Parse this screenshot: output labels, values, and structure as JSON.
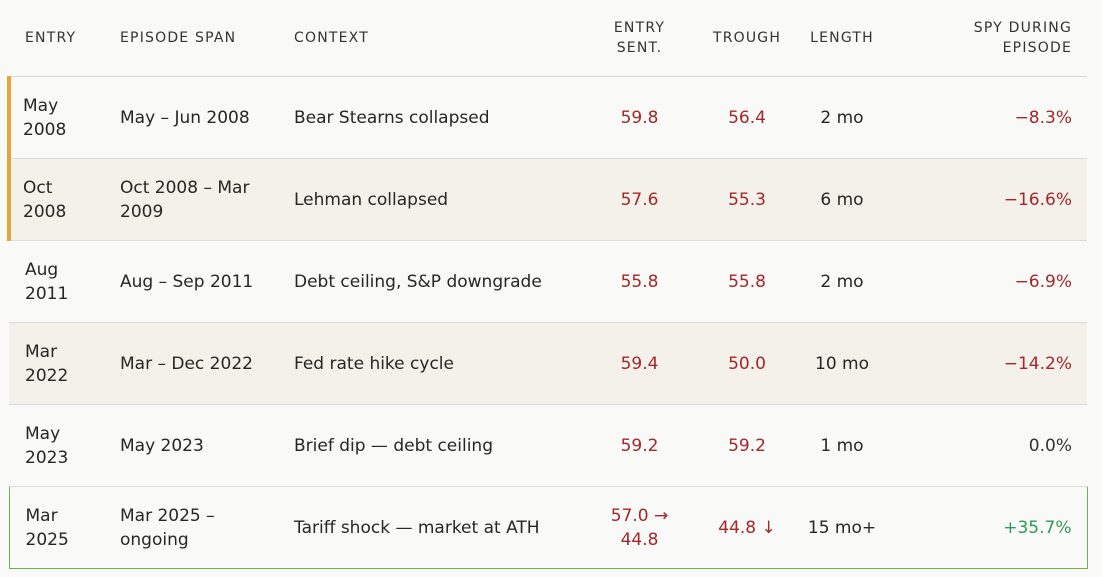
{
  "table": {
    "headers": [
      "ENTRY",
      "EPISODE SPAN",
      "CONTEXT",
      "ENTRY SENT.",
      "TROUGH",
      "LENGTH",
      "SPY DURING EPISODE"
    ],
    "rows": [
      [
        "May 2008",
        "May – Jun 2008",
        "Bear Stearns collapsed",
        "59.8",
        "56.4",
        "2 mo",
        "−8.3%"
      ],
      [
        "Oct 2008",
        "Oct 2008 – Mar 2009",
        "Lehman collapsed",
        "57.6",
        "55.3",
        "6 mo",
        "−16.6%"
      ],
      [
        "Aug 2011",
        "Aug – Sep 2011",
        "Debt ceiling, S&P downgrade",
        "55.8",
        "55.8",
        "2 mo",
        "−6.9%"
      ],
      [
        "Mar 2022",
        "Mar – Dec 2022",
        "Fed rate hike cycle",
        "59.4",
        "50.0",
        "10 mo",
        "−14.2%"
      ],
      [
        "May 2023",
        "May 2023",
        "Brief dip — debt ceiling",
        "59.2",
        "59.2",
        "1 mo",
        "0.0%"
      ],
      [
        "Mar 2025",
        "Mar 2025 – ongoing",
        "Tariff shock — market at ATH",
        "57.0 → 44.8",
        "44.8 ↓",
        "15 mo+",
        "+35.7%"
      ]
    ]
  }
}
